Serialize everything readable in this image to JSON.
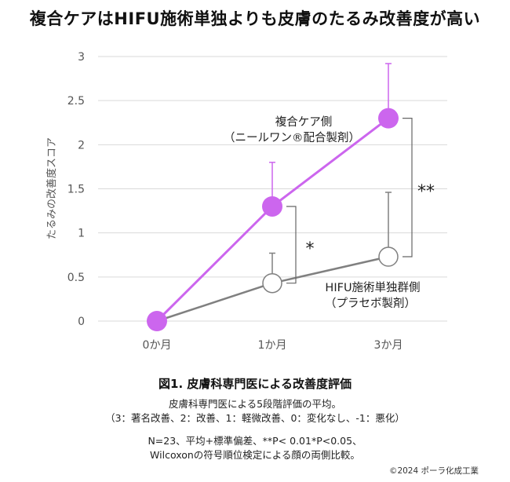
{
  "headline": "複合ケアはHIFU施術単独よりも皮膚のたるみ改善度が高い",
  "chart_data": {
    "type": "line",
    "ylabel": "たるみの改善度スコア",
    "ylim": [
      0,
      3
    ],
    "yticks": [
      "0",
      "0.5",
      "1",
      "1.5",
      "2",
      "2.5",
      "3"
    ],
    "categories": [
      "0か月",
      "1か月",
      "3か月"
    ],
    "grid": true,
    "series": [
      {
        "name": "複合ケア側",
        "sublabel": "（ニールワン®配合製剤）",
        "values": [
          0,
          1.3,
          2.3
        ],
        "errors": [
          0,
          0.5,
          0.62
        ],
        "color": "#cc66ee",
        "marker": "filled-circle"
      },
      {
        "name": "HIFU施術単独群側",
        "sublabel": "（プラセボ製剤）",
        "values": [
          0,
          0.43,
          0.73
        ],
        "errors": [
          0,
          0.34,
          0.73
        ],
        "color": "#808080",
        "marker": "open-circle"
      }
    ],
    "annotations": [
      {
        "category": "1か月",
        "label": "*"
      },
      {
        "category": "3か月",
        "label": "**"
      }
    ]
  },
  "caption": {
    "title": "図1. 皮膚科専門医による改善度評価",
    "line1": "皮膚科専門医による5段階評価の平均。",
    "line2": "（3：著名改善、2：改善、1：軽微改善、0：変化なし、-1：悪化）",
    "line3": "N=23、平均+標準偏差、**P< 0.01*P<0.05、",
    "line4": "Wilcoxonの符号順位検定による顔の両側比較。"
  },
  "copyright": "©2024 ポーラ化成工業"
}
